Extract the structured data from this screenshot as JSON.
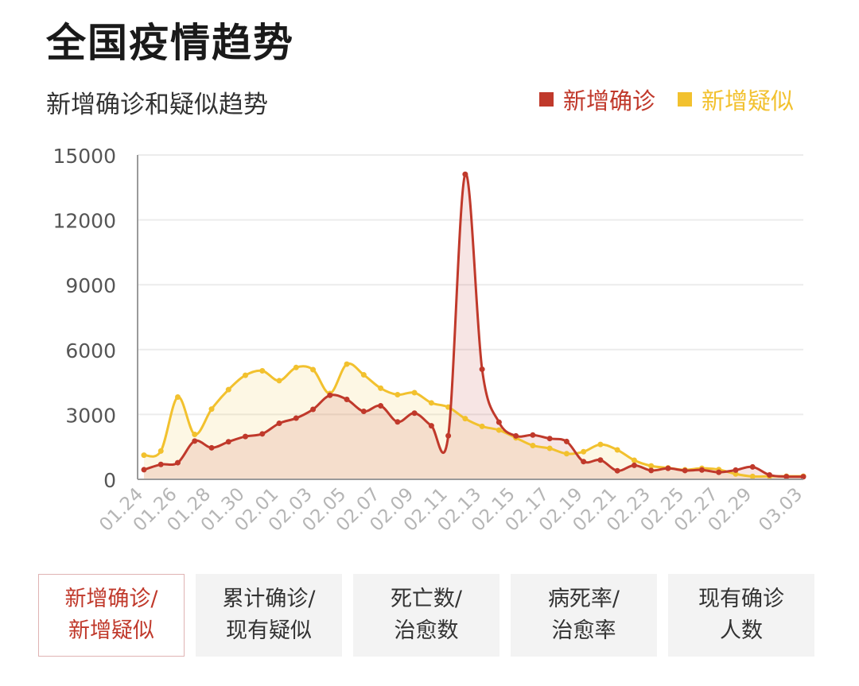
{
  "page": {
    "title": "全国疫情趋势"
  },
  "chart_data": {
    "type": "line",
    "title": "新增确诊和疑似趋势",
    "xlabel": "",
    "ylabel": "",
    "ylim": [
      0,
      15000
    ],
    "yticks": [
      0,
      3000,
      6000,
      9000,
      12000,
      15000
    ],
    "categories": [
      "01.24",
      "01.25",
      "01.26",
      "01.27",
      "01.28",
      "01.29",
      "01.30",
      "01.31",
      "02.01",
      "02.02",
      "02.03",
      "02.04",
      "02.05",
      "02.06",
      "02.07",
      "02.08",
      "02.09",
      "02.10",
      "02.11",
      "02.12",
      "02.13",
      "02.14",
      "02.15",
      "02.16",
      "02.17",
      "02.18",
      "02.19",
      "02.20",
      "02.21",
      "02.22",
      "02.23",
      "02.24",
      "02.25",
      "02.26",
      "02.27",
      "02.28",
      "02.29",
      "03.01",
      "03.02",
      "03.03"
    ],
    "xtick_labels": [
      "01.24",
      "01.26",
      "01.28",
      "01.30",
      "02.01",
      "02.03",
      "02.05",
      "02.07",
      "02.09",
      "02.11",
      "02.13",
      "02.15",
      "02.17",
      "02.19",
      "02.21",
      "02.23",
      "02.25",
      "02.27",
      "02.29",
      "03.03"
    ],
    "legend_position": "top-right",
    "series": [
      {
        "name": "新增确诊",
        "color": "#c0392b",
        "values": [
          444,
          688,
          769,
          1771,
          1459,
          1737,
          1982,
          2102,
          2590,
          2829,
          3235,
          3887,
          3694,
          3143,
          3399,
          2656,
          3062,
          2478,
          2015,
          14108,
          5090,
          2641,
          2009,
          2048,
          1886,
          1749,
          820,
          892,
          397,
          648,
          409,
          508,
          406,
          433,
          327,
          427,
          573,
          202,
          125,
          119
        ]
      },
      {
        "name": "新增疑似",
        "color": "#f2c12e",
        "values": [
          1118,
          1309,
          3806,
          2077,
          3248,
          4148,
          4812,
          5019,
          4562,
          5173,
          5072,
          3971,
          5328,
          4833,
          4214,
          3916,
          4008,
          3536,
          3342,
          2807,
          2450,
          2277,
          1918,
          1563,
          1432,
          1185,
          1277,
          1614,
          1361,
          882,
          620,
          530,
          439,
          508,
          452,
          248,
          132,
          141,
          143,
          143
        ]
      }
    ]
  },
  "tabs": [
    {
      "line1": "新增确诊/",
      "line2": "新增疑似"
    },
    {
      "line1": "累计确诊/",
      "line2": "现有疑似"
    },
    {
      "line1": "死亡数/",
      "line2": "治愈数"
    },
    {
      "line1": "病死率/",
      "line2": "治愈率"
    },
    {
      "line1": "现有确诊",
      "line2": "人数"
    }
  ]
}
